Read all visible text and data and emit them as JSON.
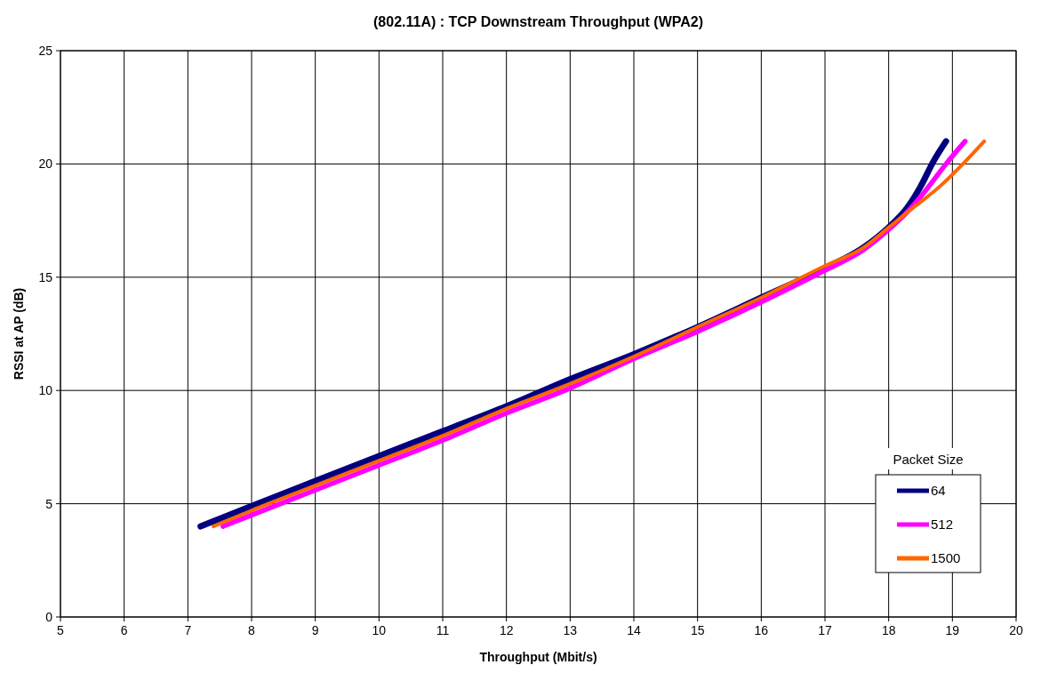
{
  "chart_data": {
    "type": "line",
    "title": "(802.11A) : TCP  Downstream Throughput (WPA2)",
    "xlabel": "Throughput (Mbit/s)",
    "ylabel": "RSSI at AP (dB)",
    "legend_title": "Packet Size",
    "legend": "bottom right",
    "grid": true,
    "marker": "none",
    "line_style": "solid",
    "xlim": [
      5,
      20
    ],
    "xticks": [
      5,
      6,
      7,
      8,
      9,
      10,
      11,
      12,
      13,
      14,
      15,
      16,
      17,
      18,
      19,
      20
    ],
    "ylim": [
      0,
      25
    ],
    "yticks": [
      0,
      5,
      10,
      15,
      20,
      25
    ],
    "series": [
      {
        "name": "64",
        "color": "#000080",
        "x": [
          7.2,
          8,
          9,
          10,
          11,
          12,
          13,
          14,
          15,
          16,
          17,
          17.6,
          18,
          18.3,
          18.5,
          18.7,
          18.9
        ],
        "values": [
          4,
          4.9,
          6,
          7.1,
          8.2,
          9.3,
          10.5,
          11.6,
          12.8,
          14.1,
          15.4,
          16.3,
          17.2,
          18.1,
          19,
          20.1,
          21
        ]
      },
      {
        "name": "512",
        "color": "#ff00ff",
        "x": [
          7.55,
          8,
          9,
          10,
          11,
          12,
          13,
          14,
          15,
          16,
          17,
          17.6,
          18,
          18.3,
          18.6,
          18.9,
          19.2
        ],
        "values": [
          4,
          4.5,
          5.6,
          6.7,
          7.8,
          9,
          10.1,
          11.4,
          12.6,
          13.9,
          15.3,
          16.2,
          17.1,
          17.9,
          18.9,
          20,
          21
        ]
      },
      {
        "name": "1500",
        "color": "#ff6600",
        "x": [
          7.4,
          8,
          9,
          10,
          11,
          12,
          13,
          14,
          15,
          16,
          17,
          17.6,
          18,
          18.4,
          18.8,
          19.2,
          19.5
        ],
        "values": [
          4,
          4.7,
          5.8,
          6.9,
          8,
          9.2,
          10.3,
          11.5,
          12.8,
          14.1,
          15.5,
          16.3,
          17.2,
          18.1,
          19,
          20.1,
          21
        ]
      }
    ]
  }
}
